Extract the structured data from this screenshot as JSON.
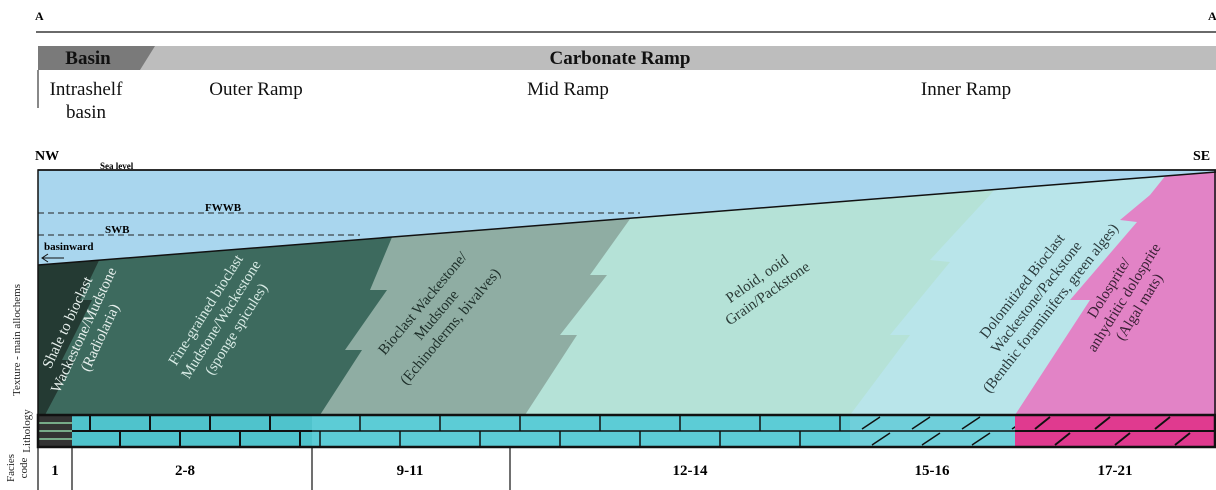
{
  "section": {
    "start": "A",
    "end": "A"
  },
  "settings": {
    "basin": "Basin",
    "ramp": "Carbonate Ramp"
  },
  "zones": [
    "Intrashelf",
    "basin",
    "Outer Ramp",
    "Mid Ramp",
    "Inner Ramp"
  ],
  "orientation": {
    "left": "NW",
    "right": "SE"
  },
  "water": {
    "sea_level": "Sea level",
    "fwwb": "FWWB",
    "swb": "SWB",
    "direction": "basinward"
  },
  "row_labels": {
    "texture": "Texture - main allochems",
    "lithology": "Lithology",
    "facies": "Facies",
    "code": "code"
  },
  "facies": [
    {
      "lines": [
        "Shale to bioclast",
        "Wackestone/Mudstone",
        "(Radiolaria)"
      ],
      "code": "1"
    },
    {
      "lines": [
        "Fine-grained bioclast",
        "Mudstone/Wackestone",
        "(sponge spicules)"
      ],
      "code": "2-8"
    },
    {
      "lines": [
        "Bioclast Wackestone/",
        "Mudstone",
        "(Echinoderms, bivalves)"
      ],
      "code": "9-11"
    },
    {
      "lines": [
        "Peloid, ooid",
        "Grain/Packstone"
      ],
      "code": "12-14"
    },
    {
      "lines": [
        "Dolomitized Bioclast",
        "Wackestone/Packstone",
        "(Benthic foraminifers, green alges)"
      ],
      "code": "15-16"
    },
    {
      "lines": [
        "Dolosprite/",
        "anhydritic dolosprite",
        "(Algal mats)"
      ],
      "code": "17-21"
    }
  ]
}
